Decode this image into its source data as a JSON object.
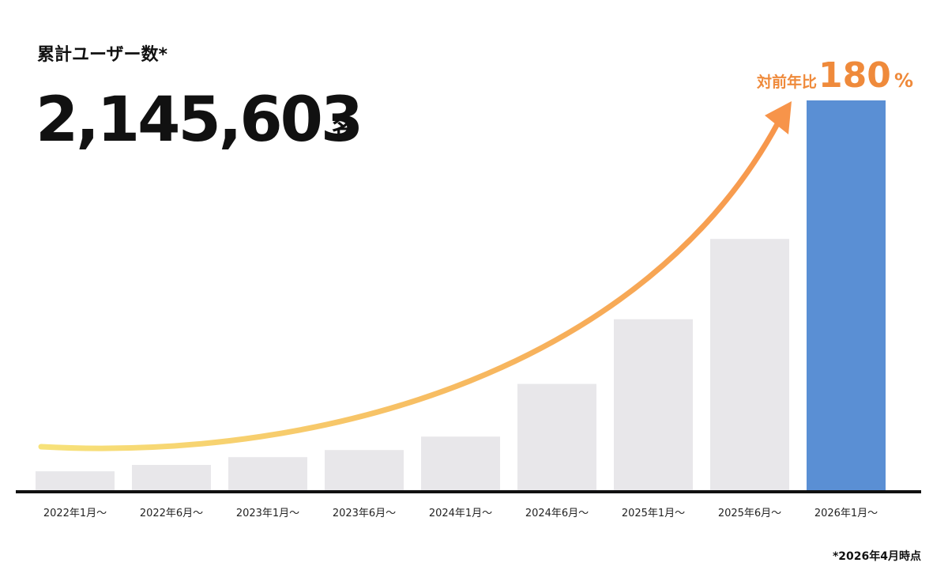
{
  "chart_data": {
    "type": "bar",
    "title": "累計ユーザー数*",
    "headline_value": "2,145,603",
    "headline_unit": "名",
    "annotation_label": "対前年比",
    "annotation_value": "180",
    "annotation_unit": "%",
    "footnote": "*2026年4月時点",
    "categories": [
      "2022年1月〜",
      "2022年6月〜",
      "2023年1月〜",
      "2023年6月〜",
      "2024年1月〜",
      "2024年6月〜",
      "2025年1月〜",
      "2025年6月〜",
      "2026年1月〜"
    ],
    "values": [
      104000,
      139000,
      182000,
      221000,
      295000,
      585000,
      941000,
      1383000,
      2145603
    ],
    "colors": [
      "#e8e7ea",
      "#e8e7ea",
      "#e8e7ea",
      "#e8e7ea",
      "#e8e7ea",
      "#e8e7ea",
      "#e8e7ea",
      "#e8e7ea",
      "#5a8fd4"
    ]
  }
}
